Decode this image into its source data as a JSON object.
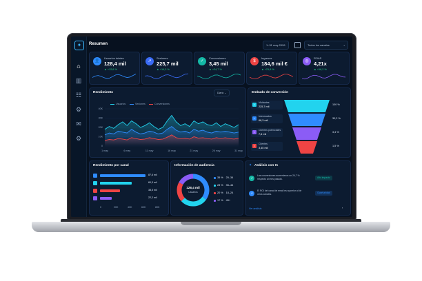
{
  "header": {
    "title": "Resumen",
    "date_range": "1–31 may 2026",
    "channels_filter": "Todos los canales"
  },
  "colors": {
    "accent_blue": "#2f8cff",
    "accent_cyan": "#22d3ee",
    "accent_red": "#ef4444",
    "accent_purple": "#8b5cf6",
    "positive": "#2bd48a"
  },
  "sidebar": {
    "icons": [
      "home-icon",
      "bar-chart-icon",
      "users-icon",
      "settings-cog-icon",
      "message-icon",
      "gear-icon"
    ]
  },
  "kpis": [
    {
      "label": "Usuarios totales",
      "value": "128,4 mil",
      "change": "▲ +12,6 %",
      "icon": "users-icon",
      "color": "#2f8cff"
    },
    {
      "label": "Sesiones",
      "value": "225,7 mil",
      "change": "▲ +14,3 %",
      "icon": "sessions-icon",
      "color": "#3b6cf6"
    },
    {
      "label": "Conversiones",
      "value": "3,45 mil",
      "change": "▲ +24,7 %",
      "icon": "check-icon",
      "color": "#14b8a6"
    },
    {
      "label": "Ingresos",
      "value": "184,6 mil €",
      "change": "▲ +21,8 %",
      "icon": "dollar-icon",
      "color": "#ef4444"
    },
    {
      "label": "ROAS",
      "value": "4,21x",
      "change": "▲ +16,2 %",
      "icon": "target-icon",
      "color": "#8b5cf6"
    }
  ],
  "performance": {
    "title": "Rendimiento",
    "period": "Diario",
    "legend": [
      "Usuarios",
      "Sesiones",
      "Conversiones"
    ]
  },
  "chart_data": {
    "type": "line",
    "title": "Rendimiento",
    "xlabel": "",
    "ylabel": "",
    "ylim": [
      0,
      40000
    ],
    "y_ticks": [
      "40K",
      "30K",
      "20K",
      "10K",
      "0"
    ],
    "categories": [
      "1 may",
      "6 may",
      "11 may",
      "16 may",
      "21 may",
      "26 may",
      "31 may"
    ],
    "x": [
      1,
      2,
      3,
      4,
      5,
      6,
      7,
      8,
      9,
      10,
      11,
      12,
      13,
      14,
      15,
      16,
      17,
      18,
      19,
      20,
      21,
      22,
      23,
      24,
      25,
      26,
      27,
      28,
      29,
      30,
      31
    ],
    "series": [
      {
        "name": "Usuarios",
        "color": "#22d3ee",
        "values": [
          18000,
          21000,
          19000,
          23000,
          26000,
          22000,
          27000,
          24000,
          20000,
          22000,
          25000,
          21000,
          18000,
          20000,
          27000,
          33000,
          26000,
          22000,
          24000,
          21000,
          27000,
          24000,
          26000,
          23000,
          22000,
          25000,
          21000,
          24000,
          22000,
          20000,
          23000
        ]
      },
      {
        "name": "Sesiones",
        "color": "#2f8cff",
        "values": [
          12000,
          14000,
          13000,
          16000,
          15000,
          14000,
          18000,
          15000,
          13000,
          14000,
          16000,
          15000,
          13000,
          14000,
          18000,
          21000,
          17000,
          15000,
          16000,
          14000,
          18000,
          16000,
          17000,
          15000,
          14000,
          16000,
          15000,
          16000,
          15000,
          14000,
          15000
        ]
      },
      {
        "name": "Conversiones",
        "color": "#ef4444",
        "values": [
          6000,
          7000,
          6500,
          8000,
          7500,
          6500,
          9000,
          8000,
          7000,
          7500,
          9000,
          8000,
          7000,
          7500,
          9500,
          12000,
          9000,
          8000,
          8500,
          7500,
          10000,
          8500,
          9000,
          8000,
          7500,
          9000,
          8000,
          9000,
          8000,
          7500,
          8500
        ]
      }
    ]
  },
  "funnel": {
    "title": "Embudo de conversión",
    "stages": [
      {
        "label": "Visitantes",
        "value": "225,7 mil",
        "pct": "100 %",
        "color": "#22d3ee"
      },
      {
        "label": "Interesados",
        "value": "68,3 mil",
        "pct": "30,2 %",
        "color": "#2f8cff"
      },
      {
        "label": "Clientes potenciales",
        "value": "7,6 mil",
        "pct": "3,4 %",
        "color": "#8b5cf6"
      },
      {
        "label": "Clientes",
        "value": "3,45 mil",
        "pct": "1,5 %",
        "color": "#ef4444"
      }
    ]
  },
  "channel": {
    "title": "Rendimiento por canal",
    "axis": [
      "0",
      "20K",
      "40K",
      "60K",
      "80K"
    ],
    "rows": [
      {
        "value": "87,6 mil",
        "fraction": 1.0,
        "color": "#2f8cff"
      },
      {
        "value": "60,3 mil",
        "fraction": 0.69,
        "color": "#22d3ee"
      },
      {
        "value": "38,5 mil",
        "fraction": 0.44,
        "color": "#ef4444"
      },
      {
        "value": "22,2 mil",
        "fraction": 0.25,
        "color": "#8b5cf6"
      }
    ]
  },
  "audience": {
    "title": "Información de audiencia",
    "center_value": "128,4 mil",
    "center_label": "Usuarios",
    "segments": [
      {
        "pct": "35 %",
        "range": "25–34",
        "share": 0.35,
        "color": "#2f8cff"
      },
      {
        "pct": "28 %",
        "range": "35–44",
        "share": 0.28,
        "color": "#22d3ee"
      },
      {
        "pct": "20 %",
        "range": "18–24",
        "share": 0.2,
        "color": "#ef4444"
      },
      {
        "pct": "17 %",
        "range": "45+",
        "share": 0.17,
        "color": "#8b5cf6"
      }
    ]
  },
  "ai": {
    "title": "Análisis con IA",
    "insights": [
      {
        "text": "Las conversiones aumentaron un 24,7 % respecto al mes pasado.",
        "badge": "Alto impacto",
        "color": "#14b8a6"
      },
      {
        "text": "El ROI del canal de email es superior al de otros canales.",
        "badge": "Oportunidad",
        "color": "#2f8cff"
      }
    ],
    "link": "Ver análisis"
  }
}
